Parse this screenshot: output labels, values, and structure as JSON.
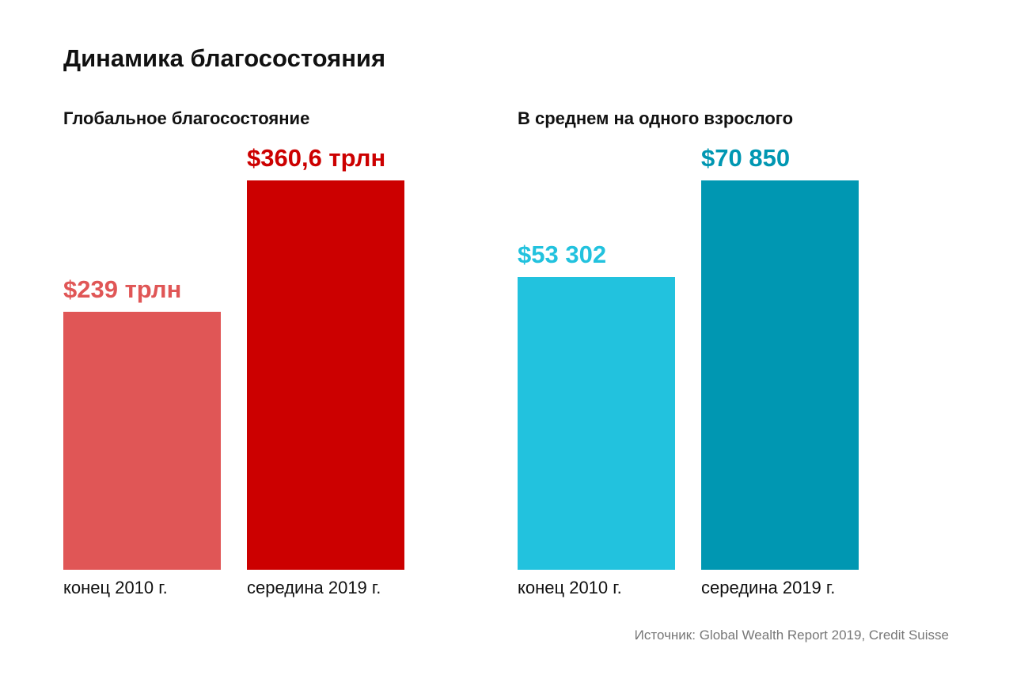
{
  "title": "Динамика благосостояния",
  "source": "Источник: Global Wealth Report 2019, Credit Suisse",
  "chart_data": [
    {
      "type": "bar",
      "title": "Глобальное благосостояние",
      "categories": [
        "конец 2010 г.",
        "середина 2019 г."
      ],
      "values": [
        239,
        360.6
      ],
      "value_labels": [
        "$239 трлн",
        "$360,6 трлн"
      ],
      "colors": [
        "#e05656",
        "#cc0000"
      ],
      "unit": "трлн $",
      "ylim": [
        0,
        360.6
      ]
    },
    {
      "type": "bar",
      "title": "В среднем на одного взрослого",
      "categories": [
        "конец 2010 г.",
        "середина 2019 г."
      ],
      "values": [
        53302,
        70850
      ],
      "value_labels": [
        "$53 302",
        "$70 850"
      ],
      "colors": [
        "#22c2de",
        "#0097b2"
      ],
      "unit": "$",
      "ylim": [
        0,
        70850
      ]
    }
  ]
}
